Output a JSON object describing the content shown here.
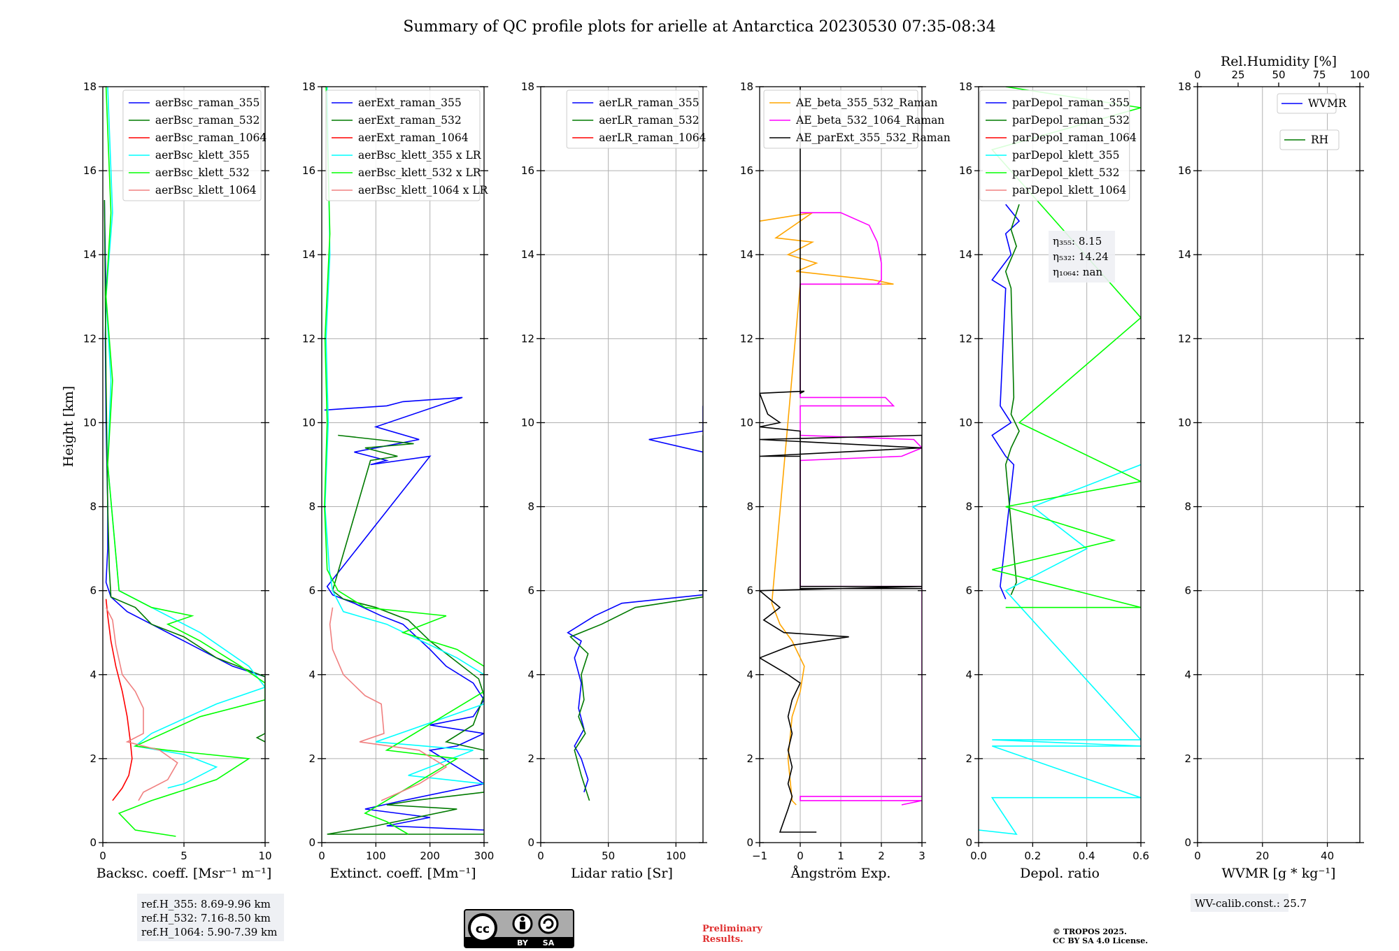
{
  "title": "Summary of QC profile plots for arielle at Antarctica 20230530 07:35-08:34",
  "ylabel": "Height [km]",
  "colors": {
    "blue": "#0000ff",
    "green": "#007a00",
    "red": "#ff0000",
    "cyan": "#00ffff",
    "lime": "#00ff00",
    "salmon": "#f08080",
    "orange": "#ffa500",
    "magenta": "#ff00ff",
    "black": "#000000"
  },
  "chart_data": [
    {
      "type": "line",
      "id": "bsc",
      "xlabel": "Backsc. coeff. [Msr⁻¹ m⁻¹]",
      "xlim": [
        0,
        10
      ],
      "xticks": [
        0,
        5,
        10
      ],
      "ylim": [
        0,
        18
      ],
      "yticks": [
        0,
        2,
        4,
        6,
        8,
        10,
        12,
        14,
        16,
        18
      ],
      "legend_loc": "top-right",
      "series": [
        {
          "name": "aerBsc_raman_355",
          "color": "blue",
          "x": [
            0.1,
            0.15,
            0.2,
            0.15,
            0.2,
            0.3,
            0.3,
            0.2,
            0.5,
            1.5,
            3,
            5,
            6.5,
            8,
            10
          ],
          "y": [
            15.3,
            14,
            13.2,
            12,
            10,
            8,
            7,
            6.2,
            5.85,
            5.5,
            5.2,
            4.8,
            4.5,
            4.2,
            3.95
          ]
        },
        {
          "name": "aerBsc_raman_532",
          "color": "green",
          "x": [
            0.1,
            0.15,
            0.2,
            0.3,
            0.4,
            0.5,
            2,
            3,
            5,
            7,
            10,
            10,
            9.5,
            10
          ],
          "y": [
            15.3,
            13,
            11,
            8,
            6.5,
            5.85,
            5.6,
            5.2,
            4.9,
            4.4,
            3.95,
            2.6,
            2.5,
            2.4
          ]
        },
        {
          "name": "aerBsc_raman_1064",
          "color": "red",
          "x": [
            0.2,
            0.3,
            0.5,
            0.8,
            1.2,
            1.5,
            1.7,
            1.8,
            1.6,
            1.2,
            0.6
          ],
          "y": [
            5.8,
            5.4,
            4.8,
            4.2,
            3.6,
            3.0,
            2.4,
            2.0,
            1.6,
            1.3,
            1.0
          ]
        },
        {
          "name": "aerBsc_klett_355",
          "color": "cyan",
          "x": [
            0.3,
            0.6,
            0.2,
            0.5,
            0.3,
            1,
            3,
            6,
            9,
            10,
            7,
            3,
            2,
            5,
            7,
            5,
            4
          ],
          "y": [
            18,
            15,
            13,
            11,
            9,
            6,
            5.6,
            5.0,
            4.2,
            3.7,
            3.3,
            2.6,
            2.3,
            2.1,
            1.8,
            1.4,
            1.3
          ]
        },
        {
          "name": "aerBsc_klett_532",
          "color": "lime",
          "x": [
            0.2,
            0.5,
            0.2,
            0.6,
            0.3,
            1,
            3,
            5.5,
            4,
            6,
            8.5,
            10,
            10,
            6,
            2,
            4,
            9,
            7,
            3,
            1,
            2,
            4.5
          ],
          "y": [
            18,
            15,
            13,
            11,
            9,
            6,
            5.6,
            5.4,
            5.2,
            4.8,
            4.2,
            3.8,
            3.4,
            3.0,
            2.3,
            2.2,
            2.0,
            1.5,
            1.0,
            0.7,
            0.3,
            0.15
          ]
        },
        {
          "name": "aerBsc_klett_1064",
          "color": "salmon",
          "x": [
            0.2,
            0.6,
            0.8,
            1.2,
            2.0,
            2.5,
            2.5,
            1.5,
            3.5,
            4.6,
            4.0,
            2.5,
            2.2
          ],
          "y": [
            5.6,
            5.3,
            4.7,
            4.0,
            3.6,
            3.2,
            2.6,
            2.4,
            2.2,
            1.9,
            1.5,
            1.2,
            1.0
          ]
        }
      ]
    },
    {
      "type": "line",
      "id": "ext",
      "xlabel": "Extinct. coeff. [Mm⁻¹]",
      "xlim": [
        0,
        300
      ],
      "xticks": [
        0,
        100,
        200,
        300
      ],
      "ylim": [
        0,
        18
      ],
      "yticks": [
        0,
        2,
        4,
        6,
        8,
        10,
        12,
        14,
        16,
        18
      ],
      "legend_loc": "top-right",
      "series": [
        {
          "name": "aerExt_raman_355",
          "color": "blue",
          "x": [
            5,
            120,
            150,
            260,
            100,
            180,
            60,
            120,
            90,
            200,
            10,
            20,
            60,
            110,
            150,
            200,
            230,
            280,
            300,
            280,
            200,
            300,
            250,
            200,
            300,
            150,
            80,
            200,
            120,
            300
          ],
          "y": [
            10.3,
            10.4,
            10.5,
            10.6,
            9.9,
            9.6,
            9.3,
            9.1,
            9.0,
            9.2,
            6.1,
            5.9,
            5.7,
            5.4,
            5.2,
            4.6,
            4.2,
            3.8,
            3.4,
            3.0,
            2.8,
            2.6,
            2.3,
            2.2,
            1.4,
            1.0,
            0.8,
            0.6,
            0.4,
            0.3
          ]
        },
        {
          "name": "aerExt_raman_532",
          "color": "green",
          "x": [
            30,
            170,
            80,
            140,
            90,
            20,
            40,
            100,
            160,
            200,
            250,
            290,
            300,
            280,
            230,
            300,
            300,
            170,
            120,
            250,
            100,
            10,
            300
          ],
          "y": [
            9.7,
            9.5,
            9.4,
            9.2,
            9.1,
            6.0,
            5.8,
            5.6,
            5.3,
            4.8,
            4.3,
            3.9,
            3.5,
            2.8,
            2.4,
            2.2,
            1.2,
            1.0,
            0.9,
            0.8,
            0.4,
            0.2,
            0.2
          ]
        },
        {
          "name": "aerExt_raman_1064",
          "color": "red",
          "x": [],
          "y": []
        },
        {
          "name": "aerBsc_klett_355 x LR",
          "color": "cyan",
          "x": [
            10,
            15,
            8,
            12,
            6,
            14,
            20,
            40,
            120,
            250,
            300,
            300,
            100,
            280,
            160,
            300
          ],
          "y": [
            18,
            14,
            12,
            10,
            8,
            6.5,
            6.0,
            5.5,
            5.2,
            4.4,
            4.0,
            3.3,
            2.4,
            2.2,
            1.6,
            1.4
          ]
        },
        {
          "name": "aerBsc_klett_532 x LR",
          "color": "lime",
          "x": [
            8,
            15,
            6,
            10,
            5,
            10,
            30,
            80,
            230,
            150,
            250,
            300,
            300,
            120,
            250,
            80,
            120,
            160
          ],
          "y": [
            18,
            14.5,
            12,
            10,
            8,
            6.5,
            6.0,
            5.6,
            5.4,
            5.0,
            4.6,
            4.2,
            3.6,
            2.2,
            2.0,
            0.7,
            0.5,
            0.2
          ]
        },
        {
          "name": "aerBsc_klett_1064 x LR",
          "color": "salmon",
          "x": [
            20,
            15,
            20,
            40,
            80,
            110,
            115,
            70,
            180,
            230,
            180,
            110
          ],
          "y": [
            5.6,
            5.2,
            4.6,
            4.0,
            3.5,
            3.3,
            2.6,
            2.4,
            2.2,
            1.8,
            1.4,
            1.0
          ]
        }
      ]
    },
    {
      "type": "line",
      "id": "lr",
      "xlabel": "Lidar ratio [Sr]",
      "xlim": [
        0,
        120
      ],
      "xticks": [
        0,
        50,
        100
      ],
      "ylim": [
        0,
        18
      ],
      "yticks": [
        0,
        2,
        4,
        6,
        8,
        10,
        12,
        14,
        16,
        18
      ],
      "legend_loc": "top-right",
      "series": [
        {
          "name": "aerLR_raman_355",
          "color": "blue",
          "x": [
            120,
            120,
            80,
            120,
            120,
            60,
            40,
            20,
            30,
            25,
            30,
            28,
            32,
            25,
            30,
            35,
            32
          ],
          "y": [
            10.4,
            9.8,
            9.6,
            9.3,
            5.9,
            5.7,
            5.4,
            5.0,
            4.8,
            4.4,
            3.8,
            3.2,
            2.7,
            2.3,
            2.0,
            1.5,
            1.2
          ]
        },
        {
          "name": "aerLR_raman_532",
          "color": "green",
          "x": [
            120,
            120,
            120,
            120,
            70,
            45,
            22,
            35,
            30,
            32,
            28,
            33,
            25,
            30,
            36
          ],
          "y": [
            9.7,
            9.1,
            6.1,
            5.85,
            5.6,
            5.2,
            4.9,
            4.5,
            4.0,
            3.4,
            3.0,
            2.6,
            2.2,
            1.6,
            1.0
          ]
        },
        {
          "name": "aerLR_raman_1064",
          "color": "red",
          "x": [],
          "y": []
        }
      ]
    },
    {
      "type": "line",
      "id": "ae",
      "xlabel": "Ångström Exp.",
      "xlim": [
        -1,
        3
      ],
      "xticks": [
        -1,
        0,
        1,
        2,
        3
      ],
      "ylim": [
        0,
        18
      ],
      "yticks": [
        0,
        2,
        4,
        6,
        8,
        10,
        12,
        14,
        16,
        18
      ],
      "legend_loc": "top-right",
      "series": [
        {
          "name": "AE_beta_355_532_Raman",
          "color": "orange",
          "x": [
            -1,
            0.3,
            -0.6,
            0.3,
            -0.3,
            0.4,
            -0.1,
            1.8,
            2.3,
            0,
            -0.7,
            -0.5,
            -0.2,
            0.1,
            0,
            -0.2,
            -0.3,
            -0.2,
            -0.1
          ],
          "y": [
            14.8,
            15.0,
            14.4,
            14.3,
            14.0,
            13.8,
            13.6,
            13.4,
            13.3,
            13.3,
            5.7,
            5.2,
            4.8,
            4.2,
            3.6,
            3.0,
            2.0,
            1.0,
            0.9
          ]
        },
        {
          "name": "AE_beta_532_1064_Raman",
          "color": "magenta",
          "x": [
            0,
            1,
            1.7,
            1.9,
            2,
            2.0,
            1.9,
            2.0,
            0,
            0,
            2.1,
            2.3,
            0,
            0,
            2.8,
            3,
            2.5,
            0,
            0,
            3,
            3,
            0,
            0,
            3,
            2.5
          ],
          "y": [
            15.0,
            15.0,
            14.7,
            14.3,
            13.8,
            13.4,
            13.3,
            13.3,
            13.3,
            10.6,
            10.6,
            10.4,
            10.4,
            9.7,
            9.6,
            9.4,
            9.2,
            9.1,
            6.1,
            6.1,
            1.1,
            1.1,
            1.0,
            1.0,
            0.9
          ]
        },
        {
          "name": "AE_parExt_355_532_Raman",
          "color": "black",
          "x": [
            0,
            0,
            0.1,
            -1,
            -0.8,
            -0.5,
            -1,
            0,
            0,
            3,
            3,
            -1,
            3,
            -1,
            0,
            0,
            3,
            -1,
            -0.5,
            -0.9,
            -0.4,
            1.2,
            -0.2,
            -1,
            -0.3,
            0,
            -0.2,
            -0.3,
            -0.2,
            -0.3,
            -0.2,
            -0.3,
            -0.2,
            -0.3,
            -0.5,
            0.4
          ],
          "y": [
            18,
            10.7,
            10.75,
            10.7,
            10.2,
            10.0,
            9.9,
            9.8,
            6.05,
            6.05,
            9.7,
            9.6,
            9.4,
            9.2,
            9.2,
            6.1,
            6.1,
            6.0,
            5.6,
            5.3,
            5.0,
            4.9,
            4.7,
            4.4,
            4.0,
            3.8,
            3.4,
            3.0,
            2.6,
            2.2,
            1.8,
            1.4,
            1.1,
            0.8,
            0.25,
            0.25
          ]
        }
      ]
    },
    {
      "type": "line",
      "id": "depol",
      "xlabel": "Depol. ratio",
      "xlim": [
        0,
        0.6
      ],
      "xticks": [
        0.0,
        0.2,
        0.4,
        0.6
      ],
      "ylim": [
        0,
        18
      ],
      "yticks": [
        0,
        2,
        4,
        6,
        8,
        10,
        12,
        14,
        16,
        18
      ],
      "legend_loc": "top-left",
      "annotations": [
        "η₃₅₅: 8.15",
        "η₅₃₂: 14.24",
        "η₁₀₆₄: nan"
      ],
      "series": [
        {
          "name": "parDepol_raman_355",
          "color": "blue",
          "x": [
            0.1,
            0.15,
            0.1,
            0.12,
            0.05,
            0.1,
            0.08,
            0.12,
            0.05,
            0.1,
            0.13,
            0.08,
            0.1
          ],
          "y": [
            15.2,
            14.8,
            14.5,
            14.0,
            13.4,
            13.2,
            10.4,
            10.0,
            9.7,
            9.2,
            9.0,
            6.1,
            5.8
          ]
        },
        {
          "name": "parDepol_raman_532",
          "color": "green",
          "x": [
            0.15,
            0.12,
            0.14,
            0.1,
            0.12,
            0.13,
            0.12,
            0.15,
            0.12,
            0.1,
            0.14,
            0.12
          ],
          "y": [
            15.2,
            14.6,
            14.2,
            13.6,
            13.2,
            10.6,
            10.2,
            9.8,
            9.4,
            9.0,
            6.2,
            5.9
          ]
        },
        {
          "name": "parDepol_raman_1064",
          "color": "red",
          "x": [],
          "y": []
        },
        {
          "name": "parDepol_klett_355",
          "color": "cyan",
          "x": [
            0.0,
            0.14,
            0.05,
            0.6,
            0.05,
            0.6,
            0.05,
            0.6,
            0.1,
            0.4,
            0.2,
            0.6
          ],
          "y": [
            0.3,
            0.2,
            1.07,
            1.07,
            2.3,
            2.3,
            2.45,
            2.45,
            6.0,
            7.0,
            8.0,
            9.0
          ]
        },
        {
          "name": "parDepol_klett_532",
          "color": "lime",
          "x": [
            0.1,
            0.6,
            0.05,
            0.5,
            0.1,
            0.6,
            0.15,
            0.6,
            0.05,
            0.6,
            0.1
          ],
          "y": [
            5.6,
            5.6,
            6.5,
            7.2,
            8.0,
            8.6,
            10.0,
            12.5,
            16.5,
            17.5,
            18
          ]
        },
        {
          "name": "parDepol_klett_1064",
          "color": "salmon",
          "x": [],
          "y": []
        }
      ]
    },
    {
      "type": "line",
      "id": "wv",
      "xlabel": "WVMR [g * kg⁻¹]",
      "top_label": "Rel.Humidity [%]",
      "xlim": [
        0,
        50
      ],
      "xticks": [
        0,
        20,
        40
      ],
      "top_xlim": [
        0,
        100
      ],
      "top_xticks": [
        0,
        25,
        50,
        75,
        100
      ],
      "ylim": [
        0,
        18
      ],
      "yticks": [
        0,
        2,
        4,
        6,
        8,
        10,
        12,
        14,
        16,
        18
      ],
      "legend_loc": "top-right",
      "series": [
        {
          "name": "WVMR",
          "color": "blue",
          "x": [],
          "y": []
        },
        {
          "name": "RH",
          "color": "green",
          "x": [],
          "y": []
        }
      ]
    }
  ],
  "footer": {
    "ref_lines": [
      "ref.H_355: 8.69-9.96 km",
      "ref.H_532: 7.16-8.50 km",
      "ref.H_1064: 5.90-7.39 km"
    ],
    "license_badge": [
      "cc",
      "BY",
      "SA"
    ],
    "preliminary": [
      "Preliminary",
      "Results."
    ],
    "copyright": [
      "© TROPOS 2025.",
      "CC BY SA 4.0 License."
    ],
    "wv_calib": "WV-calib.const.: 25.7"
  }
}
